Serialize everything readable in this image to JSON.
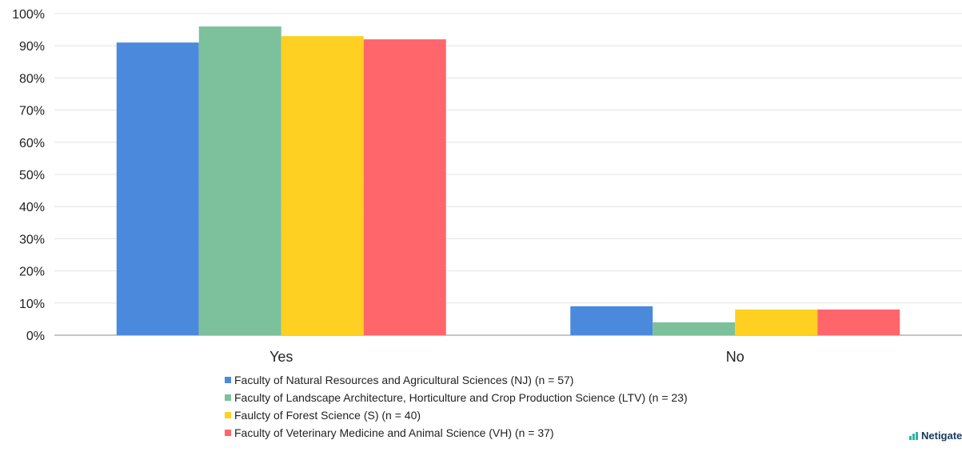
{
  "chart_data": {
    "type": "bar",
    "categories": [
      "Yes",
      "No"
    ],
    "series": [
      {
        "name": "Faculty of Natural Resources and Agricultural Sciences (NJ) (n = 57)",
        "values": [
          91,
          9
        ],
        "color": "#4a89dc"
      },
      {
        "name": "Faculty of Landscape Architecture, Horticulture and Crop Production Science (LTV) (n = 23)",
        "values": [
          96,
          4
        ],
        "color": "#7cc09c"
      },
      {
        "name": "Faulcty of Forest Science (S) (n = 40)",
        "values": [
          93,
          8
        ],
        "color": "#fdd022"
      },
      {
        "name": "Faculty of Veterinary Medicine and Animal Science (VH) (n = 37)",
        "values": [
          92,
          8
        ],
        "color": "#ff666b"
      }
    ],
    "yticks": [
      "0%",
      "10%",
      "20%",
      "30%",
      "40%",
      "50%",
      "60%",
      "70%",
      "80%",
      "90%",
      "100%"
    ],
    "ylim": [
      0,
      100
    ],
    "grid": true,
    "legend_position": "bottom"
  },
  "brand": {
    "text": "Netigate",
    "icon": "bar-chart-icon"
  }
}
